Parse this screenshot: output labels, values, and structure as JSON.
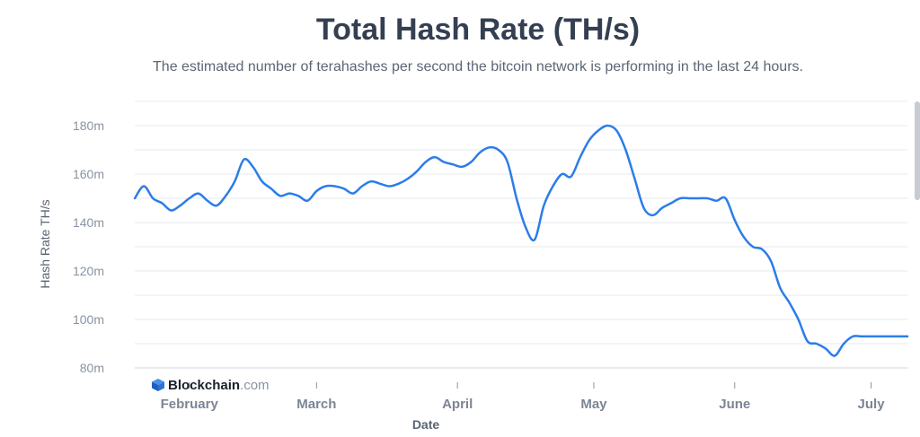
{
  "header": {
    "title": "Total Hash Rate (TH/s)",
    "subtitle": "The estimated number of terahashes per second the bitcoin network is performing in the last 24 hours."
  },
  "brand": {
    "name": "Blockchain",
    "suffix": ".com",
    "icon": "blockchain-cube-icon"
  },
  "colors": {
    "line": "#2b7de9",
    "grid": "#e6e9ee",
    "text": "#353f52"
  },
  "chart_data": {
    "type": "line",
    "title": "Total Hash Rate (TH/s)",
    "xlabel": "Date",
    "ylabel": "Hash Rate TH/s",
    "ylim": [
      80,
      190
    ],
    "yticks": [
      80,
      100,
      120,
      140,
      160,
      180
    ],
    "ytick_labels": [
      "80m",
      "100m",
      "120m",
      "140m",
      "160m",
      "180m"
    ],
    "xtick_labels": [
      "February",
      "March",
      "April",
      "May",
      "June",
      "July"
    ],
    "grid": true,
    "x": [
      "2021-01-20",
      "2021-01-22",
      "2021-01-24",
      "2021-01-26",
      "2021-01-28",
      "2021-01-30",
      "2021-02-01",
      "2021-02-03",
      "2021-02-05",
      "2021-02-07",
      "2021-02-09",
      "2021-02-11",
      "2021-02-13",
      "2021-02-15",
      "2021-02-17",
      "2021-02-19",
      "2021-02-21",
      "2021-02-23",
      "2021-02-25",
      "2021-02-27",
      "2021-03-01",
      "2021-03-03",
      "2021-03-05",
      "2021-03-07",
      "2021-03-09",
      "2021-03-11",
      "2021-03-13",
      "2021-03-15",
      "2021-03-17",
      "2021-03-19",
      "2021-03-21",
      "2021-03-23",
      "2021-03-25",
      "2021-03-27",
      "2021-03-29",
      "2021-03-31",
      "2021-04-02",
      "2021-04-04",
      "2021-04-06",
      "2021-04-08",
      "2021-04-10",
      "2021-04-12",
      "2021-04-14",
      "2021-04-16",
      "2021-04-18",
      "2021-04-20",
      "2021-04-22",
      "2021-04-24",
      "2021-04-26",
      "2021-04-28",
      "2021-04-30",
      "2021-05-02",
      "2021-05-04",
      "2021-05-06",
      "2021-05-08",
      "2021-05-10",
      "2021-05-12",
      "2021-05-14",
      "2021-05-16",
      "2021-05-18",
      "2021-05-20",
      "2021-05-22",
      "2021-05-24",
      "2021-05-26",
      "2021-05-28",
      "2021-05-30",
      "2021-06-01",
      "2021-06-03",
      "2021-06-05",
      "2021-06-07",
      "2021-06-09",
      "2021-06-11",
      "2021-06-13",
      "2021-06-15",
      "2021-06-17",
      "2021-06-19",
      "2021-06-21",
      "2021-06-23",
      "2021-06-25",
      "2021-06-27",
      "2021-06-29",
      "2021-07-01",
      "2021-07-03",
      "2021-07-05",
      "2021-07-07",
      "2021-07-09"
    ],
    "series": [
      {
        "values": [
          150,
          155,
          150,
          148,
          145,
          147,
          150,
          152,
          149,
          147,
          151,
          157,
          166,
          163,
          157,
          154,
          151,
          152,
          151,
          149,
          153,
          155,
          155,
          154,
          152,
          155,
          157,
          156,
          155,
          156,
          158,
          161,
          165,
          167,
          165,
          164,
          163,
          165,
          169,
          171,
          170,
          165,
          150,
          138,
          133,
          147,
          155,
          160,
          159,
          167,
          174,
          178,
          180,
          178,
          170,
          158,
          146,
          143,
          146,
          148,
          150,
          150,
          150,
          150,
          149,
          150,
          141,
          134,
          130,
          129,
          124,
          113,
          107,
          100,
          91,
          90,
          88,
          85,
          90,
          93,
          93,
          93,
          93,
          93,
          93,
          93
        ]
      }
    ]
  }
}
